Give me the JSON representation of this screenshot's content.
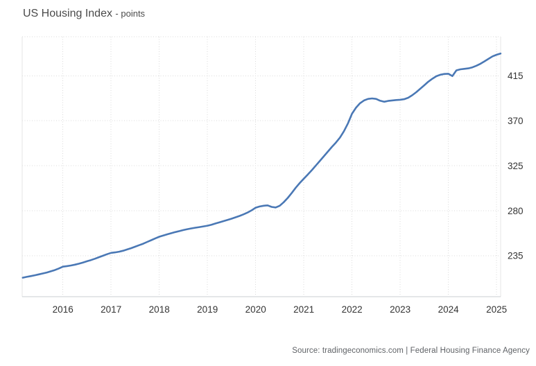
{
  "title": {
    "main": "US Housing Index",
    "unit": "- points"
  },
  "source": "Source: tradingeconomics.com | Federal Housing Finance Agency",
  "colors": {
    "line": "#4a78b5",
    "grid": "#d9d9d9",
    "border_side": "#e6e6e6",
    "border_bottom": "#c9cdd1",
    "axis_text": "#333333",
    "title_text": "#4a4a4a",
    "source_text": "#5f6266",
    "background": "#ffffff"
  },
  "chart_data": {
    "type": "line",
    "title": "US Housing Index",
    "ylabel": "points",
    "xlabel": "",
    "legend": "none",
    "grid": "dotted",
    "x_range": [
      2015.155,
      2025.085
    ],
    "y_range": [
      194,
      454
    ],
    "x_ticks": [
      2016,
      2017,
      2018,
      2019,
      2020,
      2021,
      2022,
      2023,
      2024,
      2025
    ],
    "y_ticks": [
      235,
      280,
      325,
      370,
      415
    ],
    "series": [
      {
        "name": "US Housing Index",
        "unit": "points",
        "points": [
          [
            2015.167,
            213
          ],
          [
            2015.25,
            213.8
          ],
          [
            2015.333,
            214.6
          ],
          [
            2015.417,
            215.4
          ],
          [
            2015.5,
            216.3
          ],
          [
            2015.583,
            217.2
          ],
          [
            2015.667,
            218.2
          ],
          [
            2015.75,
            219.4
          ],
          [
            2015.833,
            220.6
          ],
          [
            2015.917,
            222.2
          ],
          [
            2016.0,
            224
          ],
          [
            2016.083,
            224.6
          ],
          [
            2016.167,
            225.2
          ],
          [
            2016.25,
            226
          ],
          [
            2016.333,
            227
          ],
          [
            2016.417,
            228.2
          ],
          [
            2016.5,
            229.4
          ],
          [
            2016.583,
            230.6
          ],
          [
            2016.667,
            232
          ],
          [
            2016.75,
            233.5
          ],
          [
            2016.833,
            235
          ],
          [
            2016.917,
            236.5
          ],
          [
            2017.0,
            237.8
          ],
          [
            2017.083,
            238.3
          ],
          [
            2017.167,
            239
          ],
          [
            2017.25,
            240
          ],
          [
            2017.333,
            241.2
          ],
          [
            2017.417,
            242.5
          ],
          [
            2017.5,
            244
          ],
          [
            2017.583,
            245.5
          ],
          [
            2017.667,
            247
          ],
          [
            2017.75,
            248.8
          ],
          [
            2017.833,
            250.5
          ],
          [
            2017.917,
            252.3
          ],
          [
            2018.0,
            254
          ],
          [
            2018.083,
            255.2
          ],
          [
            2018.167,
            256.4
          ],
          [
            2018.25,
            257.5
          ],
          [
            2018.333,
            258.6
          ],
          [
            2018.417,
            259.6
          ],
          [
            2018.5,
            260.6
          ],
          [
            2018.583,
            261.5
          ],
          [
            2018.667,
            262.3
          ],
          [
            2018.75,
            263
          ],
          [
            2018.833,
            263.6
          ],
          [
            2018.917,
            264.3
          ],
          [
            2019.0,
            265
          ],
          [
            2019.083,
            266
          ],
          [
            2019.167,
            267.2
          ],
          [
            2019.25,
            268.4
          ],
          [
            2019.333,
            269.6
          ],
          [
            2019.417,
            270.8
          ],
          [
            2019.5,
            272
          ],
          [
            2019.583,
            273.4
          ],
          [
            2019.667,
            274.8
          ],
          [
            2019.75,
            276.4
          ],
          [
            2019.833,
            278.2
          ],
          [
            2019.917,
            280.4
          ],
          [
            2020.0,
            283
          ],
          [
            2020.083,
            284.2
          ],
          [
            2020.167,
            285
          ],
          [
            2020.25,
            285.3
          ],
          [
            2020.333,
            283.8
          ],
          [
            2020.417,
            283.2
          ],
          [
            2020.5,
            285
          ],
          [
            2020.583,
            288.5
          ],
          [
            2020.667,
            292.8
          ],
          [
            2020.75,
            297.8
          ],
          [
            2020.833,
            303
          ],
          [
            2020.917,
            307.8
          ],
          [
            2021.0,
            312
          ],
          [
            2021.083,
            316.2
          ],
          [
            2021.167,
            320.6
          ],
          [
            2021.25,
            325.2
          ],
          [
            2021.333,
            329.8
          ],
          [
            2021.417,
            334.5
          ],
          [
            2021.5,
            339.2
          ],
          [
            2021.583,
            343.8
          ],
          [
            2021.667,
            348.2
          ],
          [
            2021.75,
            353.2
          ],
          [
            2021.833,
            359.5
          ],
          [
            2021.917,
            367.5
          ],
          [
            2022.0,
            377
          ],
          [
            2022.083,
            383
          ],
          [
            2022.167,
            387.5
          ],
          [
            2022.25,
            390.3
          ],
          [
            2022.333,
            391.8
          ],
          [
            2022.417,
            392.3
          ],
          [
            2022.5,
            391.8
          ],
          [
            2022.583,
            390
          ],
          [
            2022.667,
            389
          ],
          [
            2022.75,
            389.8
          ],
          [
            2022.833,
            390.3
          ],
          [
            2022.917,
            390.7
          ],
          [
            2023.0,
            391
          ],
          [
            2023.083,
            391.5
          ],
          [
            2023.167,
            393
          ],
          [
            2023.25,
            395.5
          ],
          [
            2023.333,
            398.5
          ],
          [
            2023.417,
            402
          ],
          [
            2023.5,
            405.5
          ],
          [
            2023.583,
            409
          ],
          [
            2023.667,
            412
          ],
          [
            2023.75,
            414.5
          ],
          [
            2023.833,
            416
          ],
          [
            2023.917,
            416.8
          ],
          [
            2024.0,
            417
          ],
          [
            2024.083,
            414.6
          ],
          [
            2024.167,
            420.4
          ],
          [
            2024.25,
            421.4
          ],
          [
            2024.333,
            421.9
          ],
          [
            2024.417,
            422.4
          ],
          [
            2024.5,
            423.4
          ],
          [
            2024.583,
            425
          ],
          [
            2024.667,
            427
          ],
          [
            2024.75,
            429.4
          ],
          [
            2024.833,
            431.9
          ],
          [
            2024.917,
            434.4
          ],
          [
            2025.0,
            436
          ],
          [
            2025.083,
            437.2
          ]
        ]
      }
    ]
  }
}
